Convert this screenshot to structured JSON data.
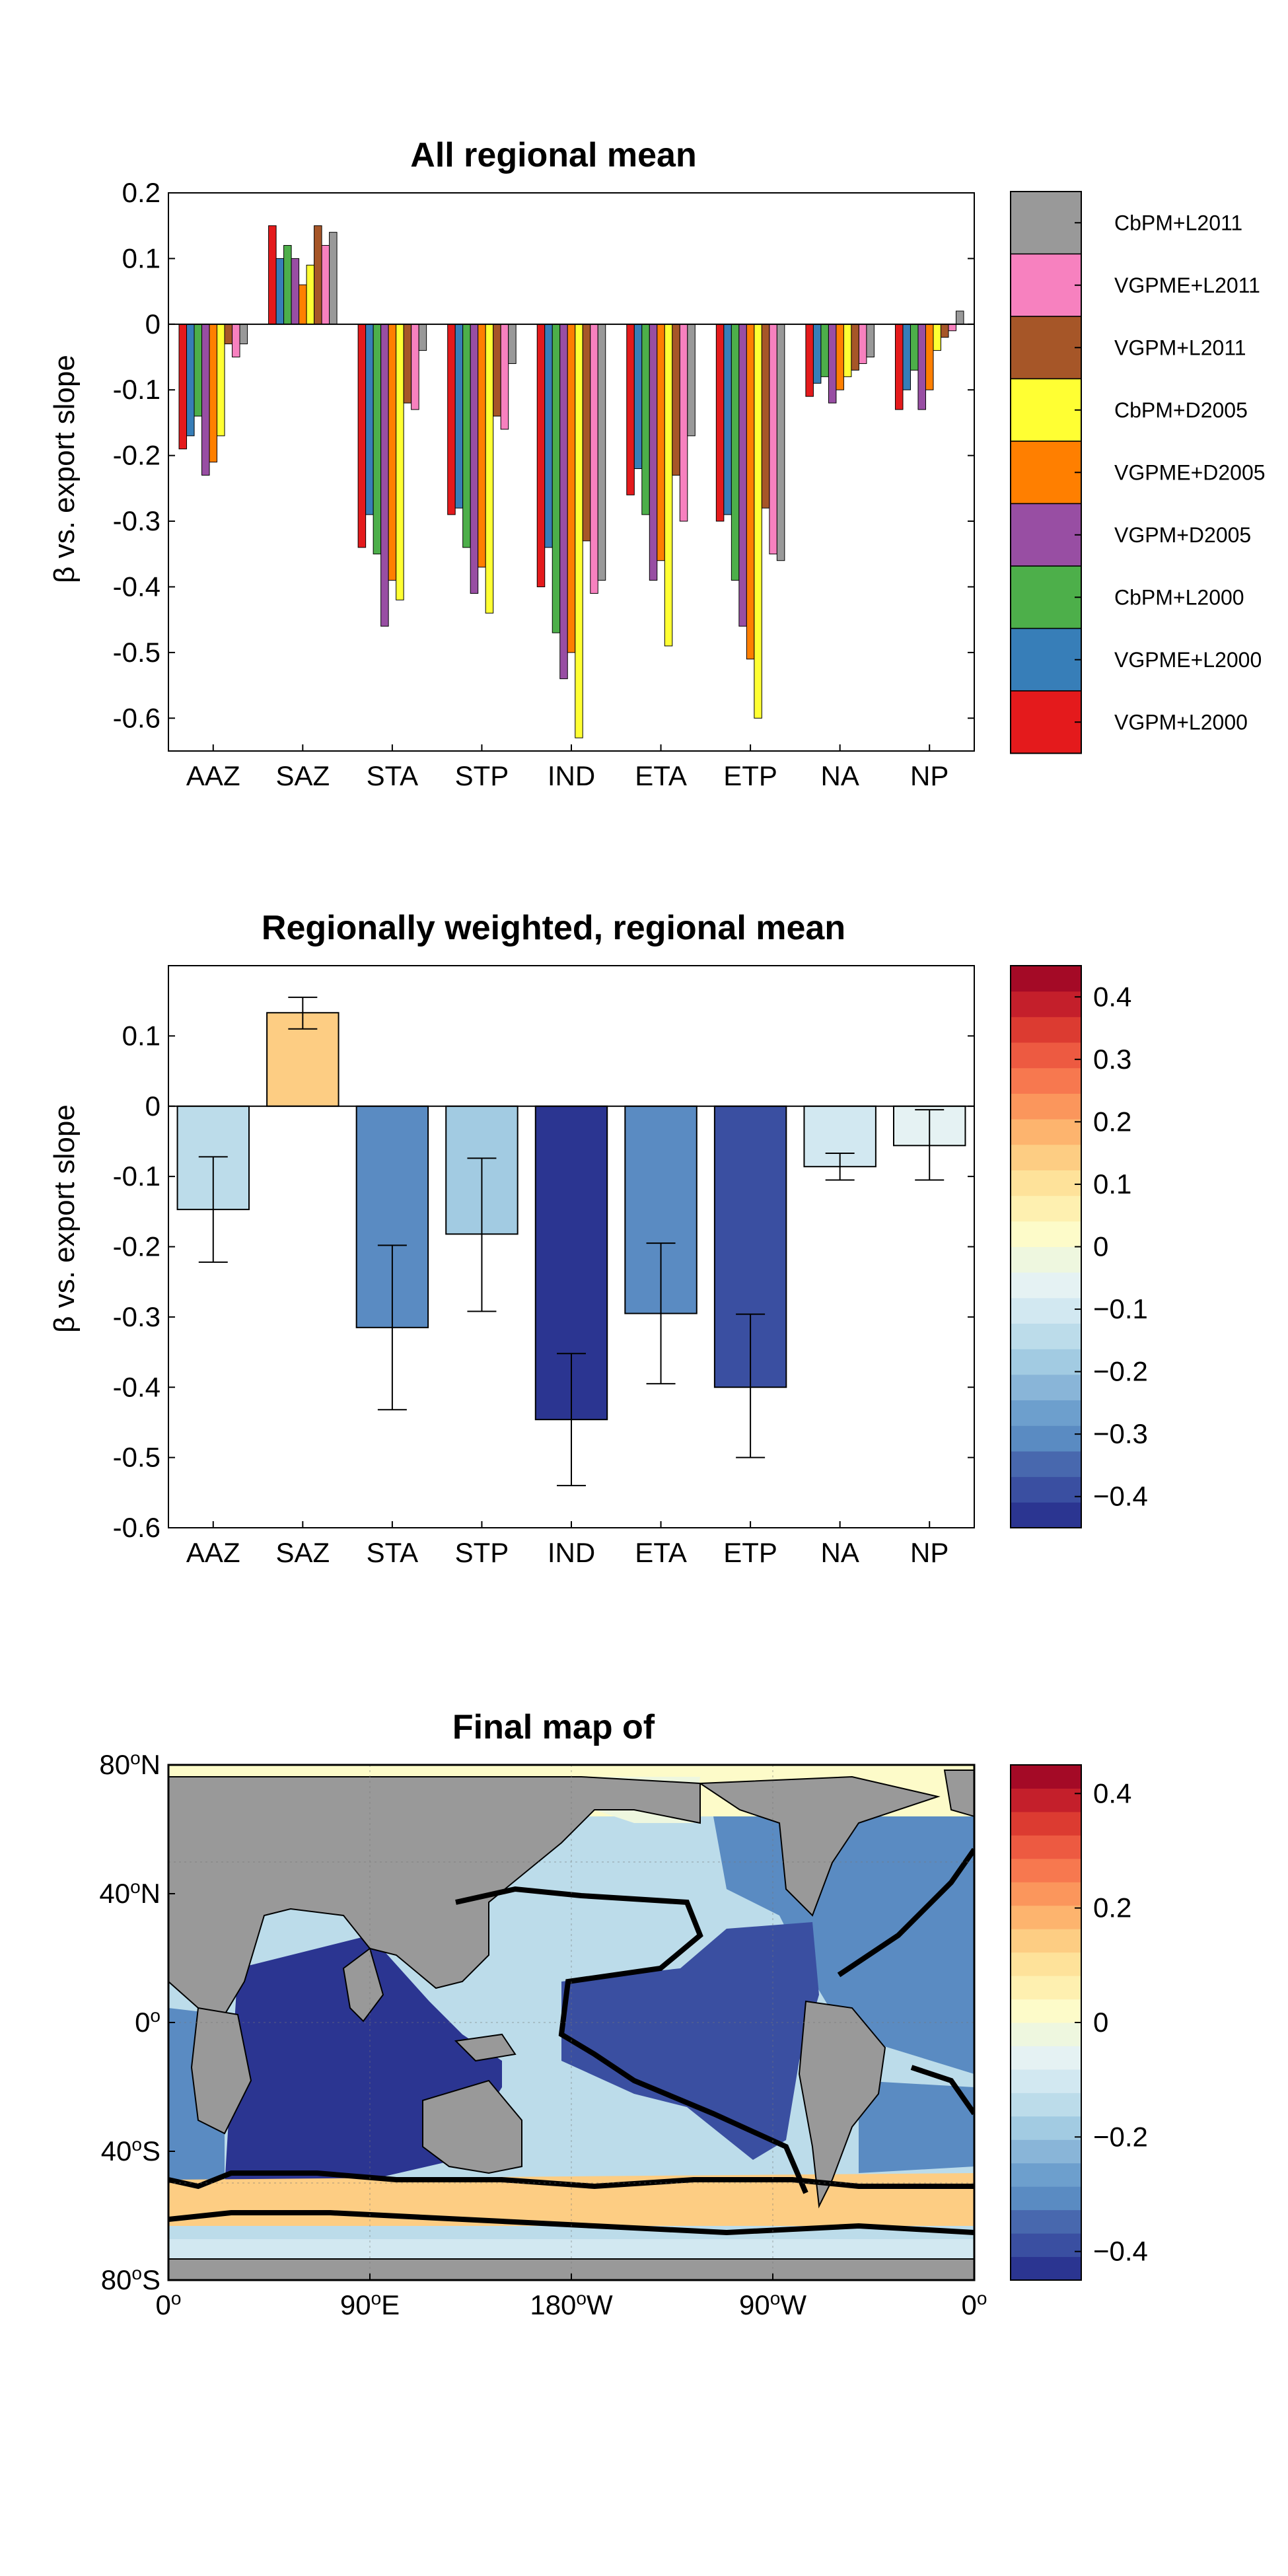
{
  "chart_data": [
    {
      "type": "bar",
      "title": "All regional mean",
      "ylabel": "β vs. export slope",
      "xlabel": "",
      "ylim": [
        -0.65,
        0.2
      ],
      "yticks": [
        0.2,
        0.1,
        0,
        -0.1,
        -0.2,
        -0.3,
        -0.4,
        -0.5,
        -0.6
      ],
      "ytick_labels": [
        "0.2",
        "0.1",
        "0",
        "-0.1",
        "-0.2",
        "-0.3",
        "-0.4",
        "-0.5",
        "-0.6"
      ],
      "categories": [
        "AAZ",
        "SAZ",
        "STA",
        "STP",
        "IND",
        "ETA",
        "ETP",
        "NA",
        "NP"
      ],
      "legend_position": "right",
      "series": [
        {
          "name": "VGPM+L2000",
          "color": "#e41a1c",
          "values": [
            -0.19,
            0.15,
            -0.34,
            -0.29,
            -0.4,
            -0.26,
            -0.3,
            -0.11,
            -0.13
          ]
        },
        {
          "name": "VGPME+L2000",
          "color": "#377eb8",
          "values": [
            -0.17,
            0.1,
            -0.29,
            -0.28,
            -0.34,
            -0.22,
            -0.29,
            -0.09,
            -0.1
          ]
        },
        {
          "name": "CbPM+L2000",
          "color": "#4daf4a",
          "values": [
            -0.14,
            0.12,
            -0.35,
            -0.34,
            -0.47,
            -0.29,
            -0.39,
            -0.08,
            -0.07
          ]
        },
        {
          "name": "VGPM+D2005",
          "color": "#984ea3",
          "values": [
            -0.23,
            0.1,
            -0.46,
            -0.41,
            -0.54,
            -0.39,
            -0.46,
            -0.12,
            -0.13
          ]
        },
        {
          "name": "VGPME+D2005",
          "color": "#ff7f00",
          "values": [
            -0.21,
            0.06,
            -0.39,
            -0.37,
            -0.5,
            -0.36,
            -0.51,
            -0.1,
            -0.1
          ]
        },
        {
          "name": "CbPM+D2005",
          "color": "#ffff33",
          "values": [
            -0.17,
            0.09,
            -0.42,
            -0.44,
            -0.63,
            -0.49,
            -0.6,
            -0.08,
            -0.04
          ]
        },
        {
          "name": "VGPM+L2011",
          "color": "#a65628",
          "values": [
            -0.03,
            0.15,
            -0.12,
            -0.14,
            -0.33,
            -0.23,
            -0.28,
            -0.07,
            -0.02
          ]
        },
        {
          "name": "VGPME+L2011",
          "color": "#f781bf",
          "values": [
            -0.05,
            0.12,
            -0.13,
            -0.16,
            -0.41,
            -0.3,
            -0.35,
            -0.06,
            -0.01
          ]
        },
        {
          "name": "CbPM+L2011",
          "color": "#999999",
          "values": [
            -0.03,
            0.14,
            -0.04,
            -0.06,
            -0.39,
            -0.17,
            -0.36,
            -0.05,
            0.02
          ]
        }
      ]
    },
    {
      "type": "bar",
      "title": "Regionally weighted, regional mean",
      "ylabel": "β vs. export slope",
      "xlabel": "",
      "ylim": [
        -0.6,
        0.2
      ],
      "yticks": [
        0.1,
        0,
        -0.1,
        -0.2,
        -0.3,
        -0.4,
        -0.5,
        -0.6
      ],
      "ytick_labels": [
        "0.1",
        "0",
        "-0.1",
        "-0.2",
        "-0.3",
        "-0.4",
        "-0.5",
        "-0.6"
      ],
      "categories": [
        "AAZ",
        "SAZ",
        "STA",
        "STP",
        "IND",
        "ETA",
        "ETP",
        "NA",
        "NP"
      ],
      "values": [
        -0.147,
        0.133,
        -0.315,
        -0.182,
        -0.446,
        -0.295,
        -0.4,
        -0.086,
        -0.056
      ],
      "error_low": [
        -0.222,
        0.11,
        -0.432,
        -0.292,
        -0.54,
        -0.395,
        -0.5,
        -0.105,
        -0.105
      ],
      "error_high": [
        -0.072,
        0.155,
        -0.198,
        -0.074,
        -0.352,
        -0.195,
        -0.296,
        -0.067,
        -0.005
      ],
      "colorbar": {
        "range": [
          -0.45,
          0.45
        ],
        "tick_values": [
          0.4,
          0.3,
          0.2,
          0.1,
          0,
          -0.1,
          -0.2,
          -0.3,
          -0.4
        ],
        "tick_labels": [
          "0.4",
          "0.3",
          "0.2",
          "0.1",
          "0",
          "−0.1",
          "−0.2",
          "−0.3",
          "−0.4"
        ],
        "colors": [
          "#2b3591",
          "#3a4fa1",
          "#4868ae",
          "#5a8bc2",
          "#6d9fcd",
          "#89b5d8",
          "#a2cbe2",
          "#bcdcea",
          "#d2e8f1",
          "#e5f2f3",
          "#eef7df",
          "#fdfbc9",
          "#fef0b0",
          "#fee29a",
          "#fdcd83",
          "#fdb46e",
          "#fb965c",
          "#f7784f",
          "#ed5a41",
          "#dc3b31",
          "#c41f2b",
          "#a40a26"
        ]
      }
    },
    {
      "type": "heatmap",
      "title": "Final map of",
      "ytick_labels": [
        "80oN",
        "40oN",
        "0o",
        "40oS",
        "80oS"
      ],
      "xtick_labels": [
        "0o",
        "90oE",
        "180oW",
        "90oW",
        "0o"
      ],
      "region_values": {
        "arctic": -0.01,
        "north_pacific": -0.056,
        "north_atlantic": -0.315,
        "subtropical_pacific": -0.182,
        "equatorial_pacific": -0.4,
        "indian": -0.446,
        "subtropical_atlantic_south": -0.315,
        "subantarctic": 0.133,
        "antarctic": -0.147
      },
      "colorbar": {
        "tick_values": [
          0.4,
          0.2,
          0,
          -0.2,
          -0.4
        ],
        "tick_labels": [
          "0.4",
          "0.2",
          "0",
          "−0.2",
          "−0.4"
        ]
      }
    }
  ]
}
